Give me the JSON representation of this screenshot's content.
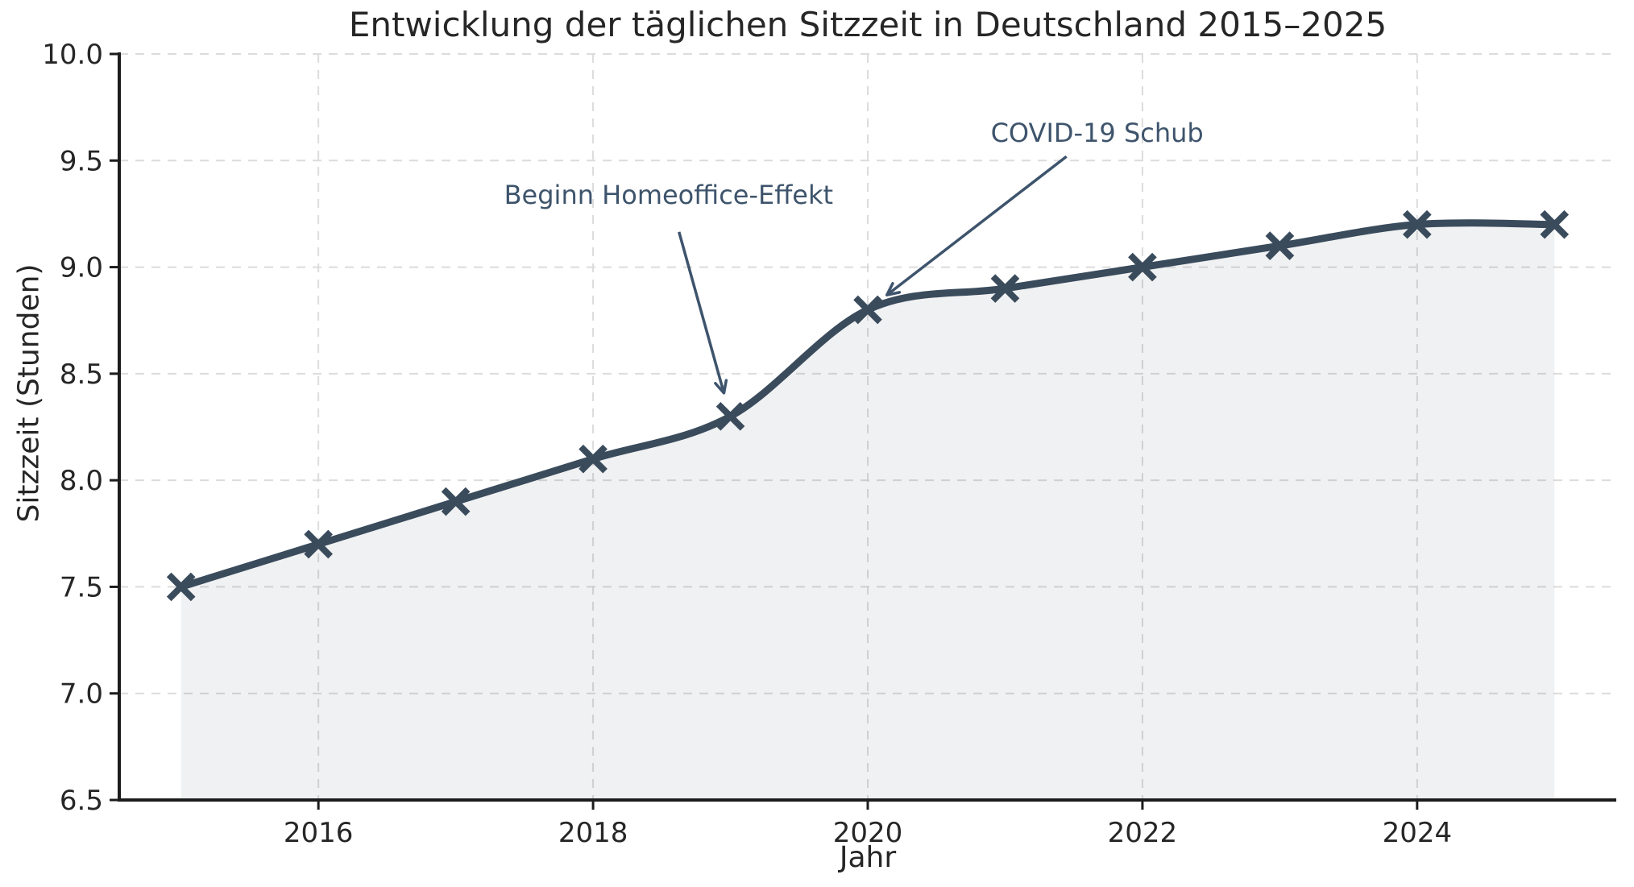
{
  "chart_data": {
    "type": "line",
    "title": "Entwicklung der täglichen Sitzzeit in Deutschland 2015–2025",
    "xlabel": "Jahr",
    "ylabel": "Sitzzeit (Stunden)",
    "x": [
      2015,
      2016,
      2017,
      2018,
      2019,
      2020,
      2021,
      2022,
      2023,
      2024,
      2025
    ],
    "values": [
      7.5,
      7.7,
      7.9,
      8.1,
      8.3,
      8.8,
      8.9,
      9.0,
      9.1,
      9.2,
      9.2
    ],
    "x_ticks": [
      2016,
      2018,
      2020,
      2022,
      2024
    ],
    "y_ticks": [
      6.5,
      7.0,
      7.5,
      8.0,
      8.5,
      9.0,
      9.5,
      10.0
    ],
    "xlim": [
      2014.55,
      2025.45
    ],
    "ylim": [
      6.5,
      10.0
    ],
    "grid": true,
    "grid_style": "dashed",
    "legend": "none",
    "marker": "x",
    "smooth": true,
    "colors": {
      "line": "#3a4b5c",
      "fill": "rgba(58, 75, 92, 0.08)",
      "grid": "#dcdcdc",
      "spine": "#1c1c1c",
      "tick_label": "#262626",
      "annotation": "#3e546c"
    },
    "annotations": [
      {
        "text": "Beginn Homeoffice-Effekt",
        "target_x": 2019,
        "target_y": 8.3,
        "text_x": 2018.55,
        "text_y": 9.34
      },
      {
        "text": "COVID-19 Schub",
        "target_x": 2020,
        "target_y": 8.8,
        "text_x": 2021.67,
        "text_y": 9.63
      }
    ]
  }
}
